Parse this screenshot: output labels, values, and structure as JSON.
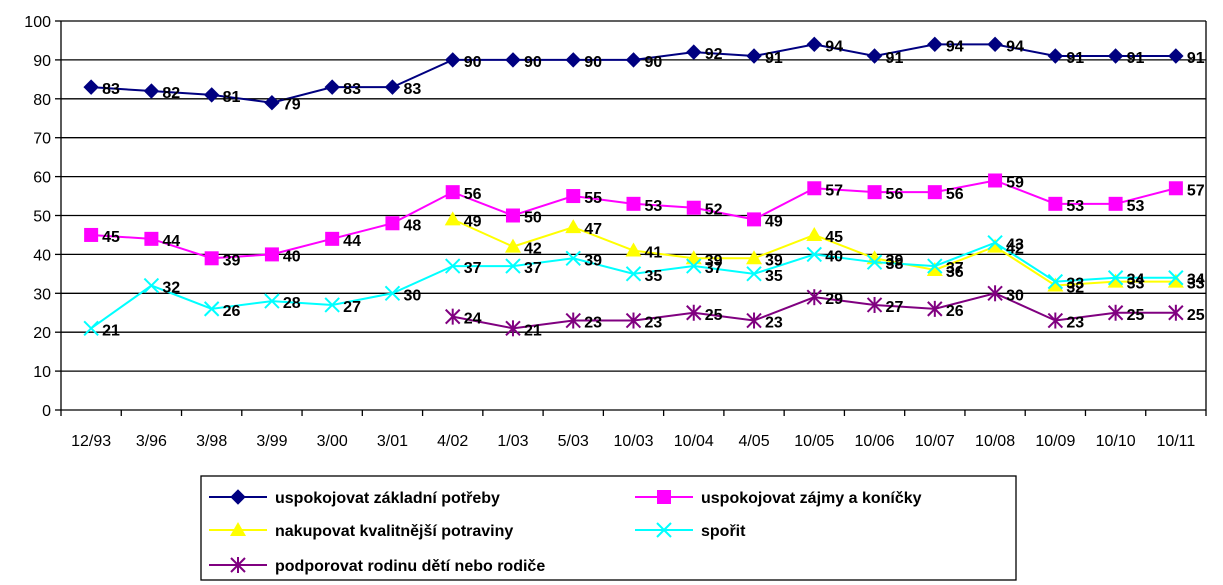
{
  "chart_data": {
    "type": "line",
    "title": "",
    "xlabel": "",
    "ylabel": "",
    "ylim": [
      0,
      100
    ],
    "yticks": [
      0,
      10,
      20,
      30,
      40,
      50,
      60,
      70,
      80,
      90,
      100
    ],
    "grid": "horizontal",
    "legend_position": "bottom",
    "categories": [
      "12/93",
      "3/96",
      "3/98",
      "3/99",
      "3/00",
      "3/01",
      "4/02",
      "1/03",
      "5/03",
      "10/03",
      "10/04",
      "4/05",
      "10/05",
      "10/06",
      "10/07",
      "10/08",
      "10/09",
      "10/10",
      "10/11"
    ],
    "series": [
      {
        "name": "uspokojovat základní potřeby",
        "color": "#000080",
        "marker": "diamond",
        "values": [
          83,
          82,
          81,
          79,
          83,
          83,
          90,
          90,
          90,
          90,
          92,
          91,
          94,
          91,
          94,
          94,
          91,
          91,
          91
        ]
      },
      {
        "name": "uspokojovat zájmy a koníčky",
        "color": "#FF00FF",
        "marker": "square",
        "values": [
          45,
          44,
          39,
          40,
          44,
          48,
          56,
          50,
          55,
          53,
          52,
          49,
          57,
          56,
          56,
          59,
          53,
          53,
          57
        ]
      },
      {
        "name": "nakupovat kvalitnější potraviny",
        "color": "#FFFF00",
        "marker": "triangle",
        "values": [
          null,
          null,
          null,
          null,
          null,
          null,
          49,
          42,
          47,
          41,
          39,
          39,
          45,
          39,
          36,
          42,
          32,
          33,
          33
        ]
      },
      {
        "name": "spořit",
        "color": "#00FFFF",
        "marker": "x",
        "values": [
          21,
          32,
          26,
          28,
          27,
          30,
          37,
          37,
          39,
          35,
          37,
          35,
          40,
          38,
          37,
          43,
          33,
          34,
          34
        ]
      },
      {
        "name": "podporovat rodinu dětí nebo rodiče",
        "color": "#800080",
        "marker": "star",
        "values": [
          null,
          null,
          null,
          null,
          null,
          null,
          24,
          21,
          23,
          23,
          25,
          23,
          29,
          27,
          26,
          30,
          23,
          25,
          25
        ]
      }
    ]
  }
}
